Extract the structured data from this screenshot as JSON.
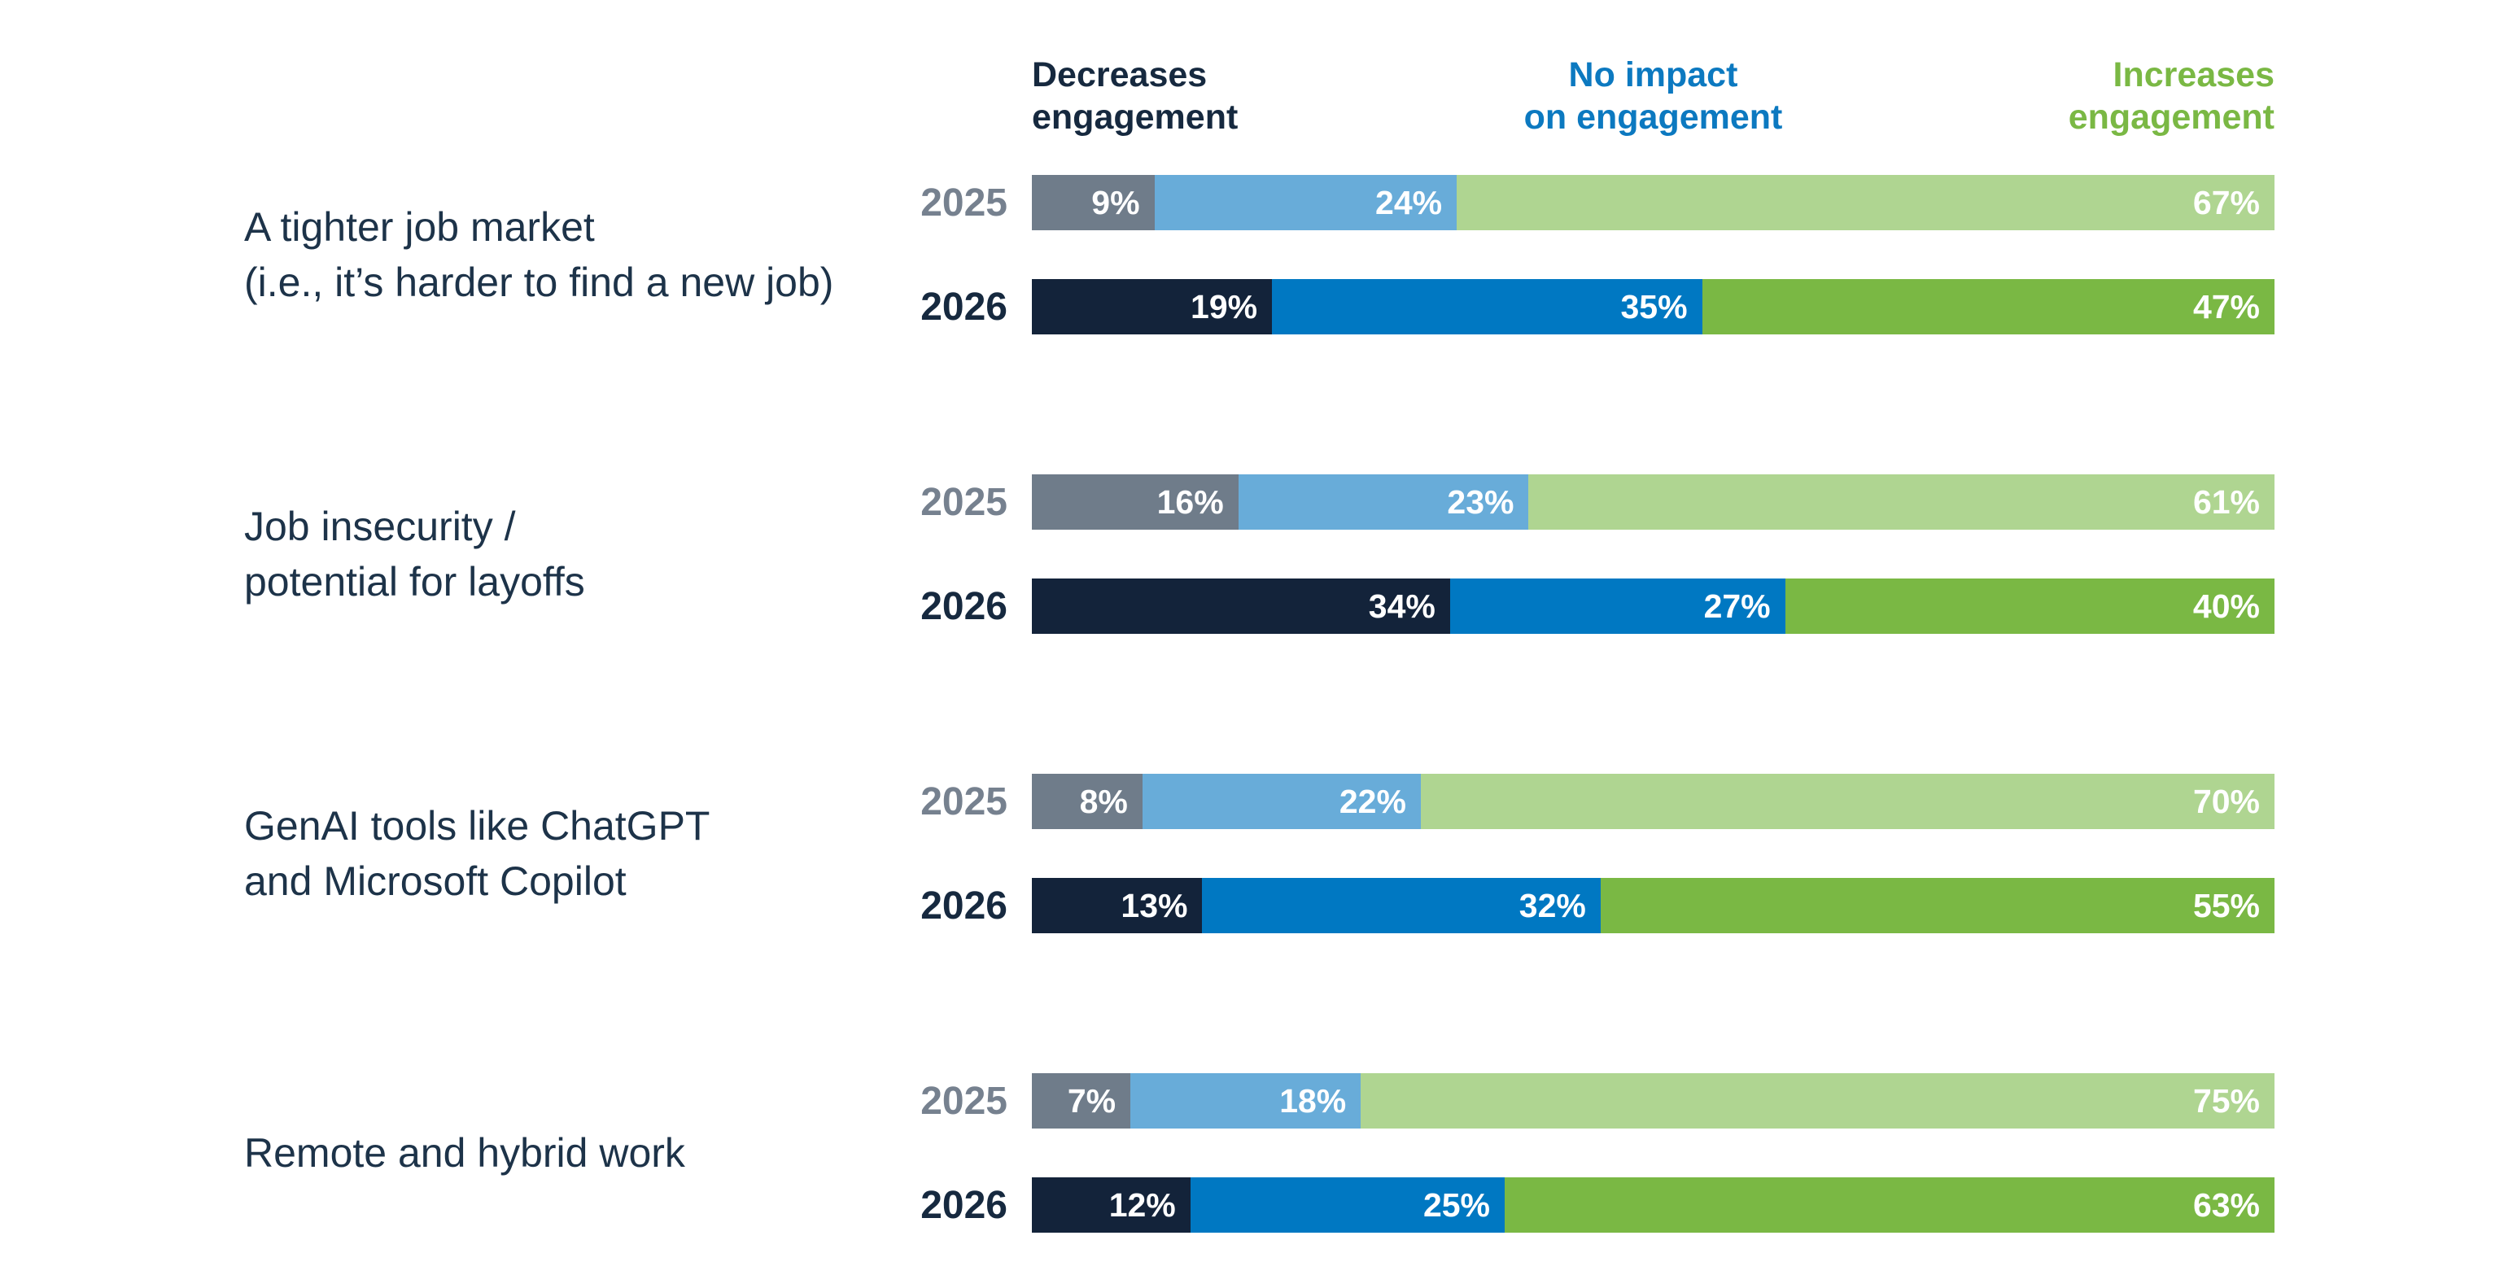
{
  "header": {
    "col1": {
      "lines": [
        "Decreases",
        "engagement"
      ],
      "color": "#16293f"
    },
    "col2": {
      "lines": [
        "No impact",
        "on engagement"
      ],
      "color": "#0c79c0"
    },
    "col3": {
      "lines": [
        "Increases",
        "engagement"
      ],
      "color": "#7ab844"
    }
  },
  "chart_data": {
    "type": "bar",
    "orientation": "horizontal",
    "stacked": true,
    "unit": "%",
    "value_range": [
      0,
      100
    ],
    "series_names": [
      "Decreases engagement",
      "No impact on engagement",
      "Increases engagement"
    ],
    "series_colors": {
      "2025": [
        "#6f7c8a",
        "#68acd9",
        "#afd591"
      ],
      "2026": [
        "#13233a",
        "#0078c2",
        "#7ab844"
      ]
    },
    "year_label_colors": {
      "2025": "#76818f",
      "2026": "#16293f"
    },
    "category_label_color": "#1d3349",
    "groups": [
      {
        "label_lines": [
          "A tighter job market",
          "(i.e., it’s harder to find a new job)"
        ],
        "rows": [
          {
            "year": "2025",
            "values": [
              9,
              24,
              67
            ]
          },
          {
            "year": "2026",
            "values": [
              19,
              35,
              47
            ]
          }
        ]
      },
      {
        "label_lines": [
          "Job insecurity /",
          "potential for layoffs"
        ],
        "rows": [
          {
            "year": "2025",
            "values": [
              16,
              23,
              61
            ]
          },
          {
            "year": "2026",
            "values": [
              34,
              27,
              40
            ]
          }
        ]
      },
      {
        "label_lines": [
          "GenAI tools like ChatGPT",
          "and Microsoft Copilot"
        ],
        "rows": [
          {
            "year": "2025",
            "values": [
              8,
              22,
              70
            ]
          },
          {
            "year": "2026",
            "values": [
              13,
              32,
              55
            ]
          }
        ]
      },
      {
        "label_lines": [
          "Remote and hybrid work"
        ],
        "rows": [
          {
            "year": "2025",
            "values": [
              7,
              18,
              75
            ]
          },
          {
            "year": "2026",
            "values": [
              12,
              25,
              63
            ]
          }
        ]
      }
    ]
  }
}
